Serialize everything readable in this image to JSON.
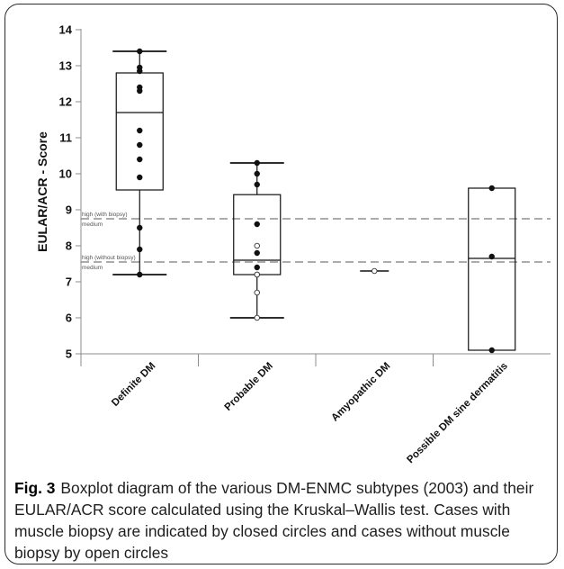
{
  "chart_data": {
    "type": "boxplot",
    "ylabel": "EULAR/ACR - Score",
    "xlabel": "",
    "ylim": [
      5,
      14
    ],
    "yticks": [
      5,
      6,
      7,
      8,
      9,
      10,
      11,
      12,
      13,
      14
    ],
    "grid": false,
    "categories": [
      "Definite DM",
      "Probable DM",
      "Amyopathic DM",
      "Possible DM sine dermatitis"
    ],
    "boxes": [
      {
        "name": "Definite DM",
        "whisker_low": 7.2,
        "q1": 9.55,
        "median": 11.7,
        "q3": 12.8,
        "whisker_high": 13.4
      },
      {
        "name": "Probable DM",
        "whisker_low": 6.0,
        "q1": 7.2,
        "median": 7.6,
        "q3": 9.42,
        "whisker_high": 10.3
      },
      {
        "name": "Amyopathic DM",
        "whisker_low": 7.3,
        "q1": 7.3,
        "median": 7.3,
        "q3": 7.3,
        "whisker_high": 7.3
      },
      {
        "name": "Possible DM sine dermatitis",
        "whisker_low": 5.1,
        "q1": 5.1,
        "median": 7.65,
        "q3": 9.6,
        "whisker_high": 9.6
      }
    ],
    "points": [
      {
        "category": 0,
        "y": 13.4,
        "biopsy": true
      },
      {
        "category": 0,
        "y": 12.95,
        "biopsy": true
      },
      {
        "category": 0,
        "y": 12.85,
        "biopsy": true
      },
      {
        "category": 0,
        "y": 12.4,
        "biopsy": true
      },
      {
        "category": 0,
        "y": 12.3,
        "biopsy": true
      },
      {
        "category": 0,
        "y": 11.2,
        "biopsy": true
      },
      {
        "category": 0,
        "y": 10.8,
        "biopsy": true
      },
      {
        "category": 0,
        "y": 10.4,
        "biopsy": true
      },
      {
        "category": 0,
        "y": 9.9,
        "biopsy": true
      },
      {
        "category": 0,
        "y": 8.5,
        "biopsy": true
      },
      {
        "category": 0,
        "y": 7.9,
        "biopsy": true
      },
      {
        "category": 0,
        "y": 7.2,
        "biopsy": true
      },
      {
        "category": 1,
        "y": 10.3,
        "biopsy": true
      },
      {
        "category": 1,
        "y": 10.0,
        "biopsy": true
      },
      {
        "category": 1,
        "y": 9.7,
        "biopsy": true
      },
      {
        "category": 1,
        "y": 8.6,
        "biopsy": true
      },
      {
        "category": 1,
        "y": 8.0,
        "biopsy": false
      },
      {
        "category": 1,
        "y": 7.8,
        "biopsy": true
      },
      {
        "category": 1,
        "y": 7.4,
        "biopsy": true
      },
      {
        "category": 1,
        "y": 7.2,
        "biopsy": true
      },
      {
        "category": 1,
        "y": 7.2,
        "biopsy": false
      },
      {
        "category": 1,
        "y": 6.7,
        "biopsy": false
      },
      {
        "category": 1,
        "y": 6.0,
        "biopsy": false
      },
      {
        "category": 2,
        "y": 7.3,
        "biopsy": false
      },
      {
        "category": 3,
        "y": 9.6,
        "biopsy": true
      },
      {
        "category": 3,
        "y": 7.7,
        "biopsy": true
      },
      {
        "category": 3,
        "y": 5.1,
        "biopsy": true
      }
    ],
    "reference_lines": [
      {
        "y": 8.75,
        "label_above": "high (with biopsy)",
        "label_below": "medium"
      },
      {
        "y": 7.55,
        "label_above": "high (without biopsy)",
        "label_below": "medium"
      }
    ],
    "colors": {
      "axis": "#8c8c8c",
      "box": "#111111",
      "reference": "#7a7a7a"
    }
  },
  "caption": {
    "label": "Fig. 3",
    "text": "Boxplot diagram of the various DM-ENMC subtypes (2003) and their EULAR/ACR score calculated using the Kruskal–Wallis test. Cases with muscle biopsy are indicated by closed circles and cases without muscle biopsy by open circles"
  }
}
